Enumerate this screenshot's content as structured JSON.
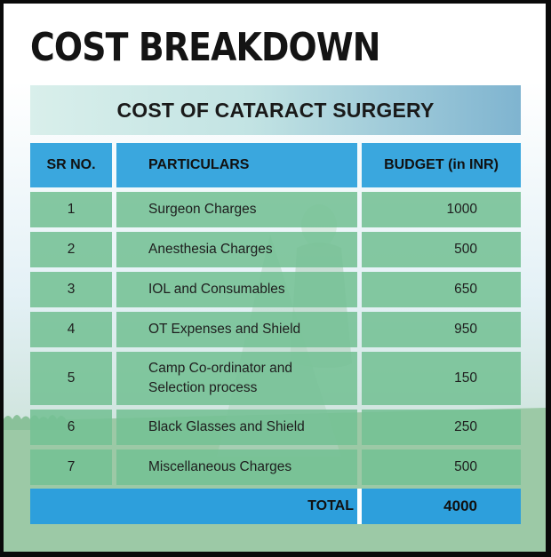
{
  "heading": "COST BREAKDOWN",
  "subtitle": "COST OF CATARACT SURGERY",
  "table": {
    "headers": [
      "SR NO.",
      "PARTICULARS",
      "BUDGET (in INR)"
    ],
    "rows": [
      {
        "sr": "1",
        "particular": "Surgeon Charges",
        "budget": "1000"
      },
      {
        "sr": "2",
        "particular": "Anesthesia Charges",
        "budget": "500"
      },
      {
        "sr": "3",
        "particular": "IOL and Consumables",
        "budget": "650"
      },
      {
        "sr": "4",
        "particular": "OT Expenses and Shield",
        "budget": "950"
      },
      {
        "sr": "5",
        "particular": "Camp Co-ordinator and Selection process",
        "budget": "150"
      },
      {
        "sr": "6",
        "particular": "Black Glasses and Shield",
        "budget": "250"
      },
      {
        "sr": "7",
        "particular": "Miscellaneous Charges",
        "budget": "500"
      }
    ],
    "total_label": "TOTAL",
    "total_value": "4000"
  },
  "colors": {
    "header_blue": "#3aa7de",
    "row_green": "#74c094",
    "total_blue": "#2d9fdc"
  }
}
